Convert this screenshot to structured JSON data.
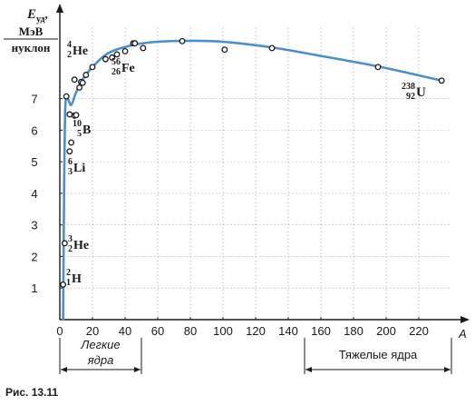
{
  "chart_data": {
    "type": "scatter",
    "title": "",
    "ylabel": {
      "symbol": "E",
      "sub": "уд",
      "unit": "МэВ",
      "per": "нуклон"
    },
    "xlabel": "A",
    "xlim": [
      0,
      240
    ],
    "ylim": [
      0,
      8.8
    ],
    "x_ticks": [
      0,
      20,
      40,
      60,
      80,
      100,
      120,
      140,
      160,
      180,
      200,
      220
    ],
    "y_ticks": [
      1,
      2,
      3,
      4,
      5,
      6,
      7
    ],
    "grid": true,
    "points": [
      {
        "x": 2,
        "y": 1.11
      },
      {
        "x": 3,
        "y": 2.42
      },
      {
        "x": 4,
        "y": 7.07
      },
      {
        "x": 6,
        "y": 5.33
      },
      {
        "x": 7,
        "y": 5.61
      },
      {
        "x": 6,
        "y": 6.5
      },
      {
        "x": 9,
        "y": 6.46
      },
      {
        "x": 10,
        "y": 6.48
      },
      {
        "x": 9,
        "y": 7.6
      },
      {
        "x": 12,
        "y": 7.35
      },
      {
        "x": 13,
        "y": 7.53
      },
      {
        "x": 14,
        "y": 7.5
      },
      {
        "x": 16,
        "y": 7.75
      },
      {
        "x": 20,
        "y": 8.0
      },
      {
        "x": 28,
        "y": 8.25
      },
      {
        "x": 32,
        "y": 8.3
      },
      {
        "x": 35,
        "y": 8.4
      },
      {
        "x": 40,
        "y": 8.5
      },
      {
        "x": 45,
        "y": 8.75
      },
      {
        "x": 46,
        "y": 8.75
      },
      {
        "x": 51,
        "y": 8.6
      },
      {
        "x": 75,
        "y": 8.82
      },
      {
        "x": 101,
        "y": 8.55
      },
      {
        "x": 130,
        "y": 8.6
      },
      {
        "x": 195,
        "y": 8.0
      },
      {
        "x": 234,
        "y": 7.57
      }
    ],
    "curve": [
      {
        "x": 2,
        "y": 0.0
      },
      {
        "x": 2.3,
        "y": 2.0
      },
      {
        "x": 2.7,
        "y": 4.5
      },
      {
        "x": 3.2,
        "y": 6.5
      },
      {
        "x": 4,
        "y": 7.07
      },
      {
        "x": 5,
        "y": 7.0
      },
      {
        "x": 7,
        "y": 6.8
      },
      {
        "x": 10,
        "y": 7.2
      },
      {
        "x": 14,
        "y": 7.6
      },
      {
        "x": 20,
        "y": 8.0
      },
      {
        "x": 30,
        "y": 8.45
      },
      {
        "x": 45,
        "y": 8.7
      },
      {
        "x": 60,
        "y": 8.8
      },
      {
        "x": 80,
        "y": 8.83
      },
      {
        "x": 100,
        "y": 8.8
      },
      {
        "x": 130,
        "y": 8.62
      },
      {
        "x": 160,
        "y": 8.35
      },
      {
        "x": 195,
        "y": 8.02
      },
      {
        "x": 234,
        "y": 7.57
      }
    ],
    "isotopes": [
      {
        "sym": "H",
        "mass": "2",
        "z": "1"
      },
      {
        "sym": "He",
        "mass": "3",
        "z": "2"
      },
      {
        "sym": "Li",
        "mass": "6",
        "z": "3"
      },
      {
        "sym": "B",
        "mass": "10",
        "z": "5"
      },
      {
        "sym": "He",
        "mass": "4",
        "z": "2"
      },
      {
        "sym": "Fe",
        "mass": "56",
        "z": "26"
      },
      {
        "sym": "U",
        "mass": "238",
        "z": "92"
      }
    ],
    "regions": [
      {
        "label_lines": [
          "Легкие",
          "ядра"
        ],
        "from": 0,
        "to": 50
      },
      {
        "label_lines": [
          "Тяжелые ядра"
        ],
        "from": 150,
        "to": 240
      }
    ],
    "colors": {
      "curve": "#4a8fd0",
      "axis": "#1a1a1a",
      "grid": "#9a9a9a"
    }
  },
  "caption": "Рис. 13.11"
}
